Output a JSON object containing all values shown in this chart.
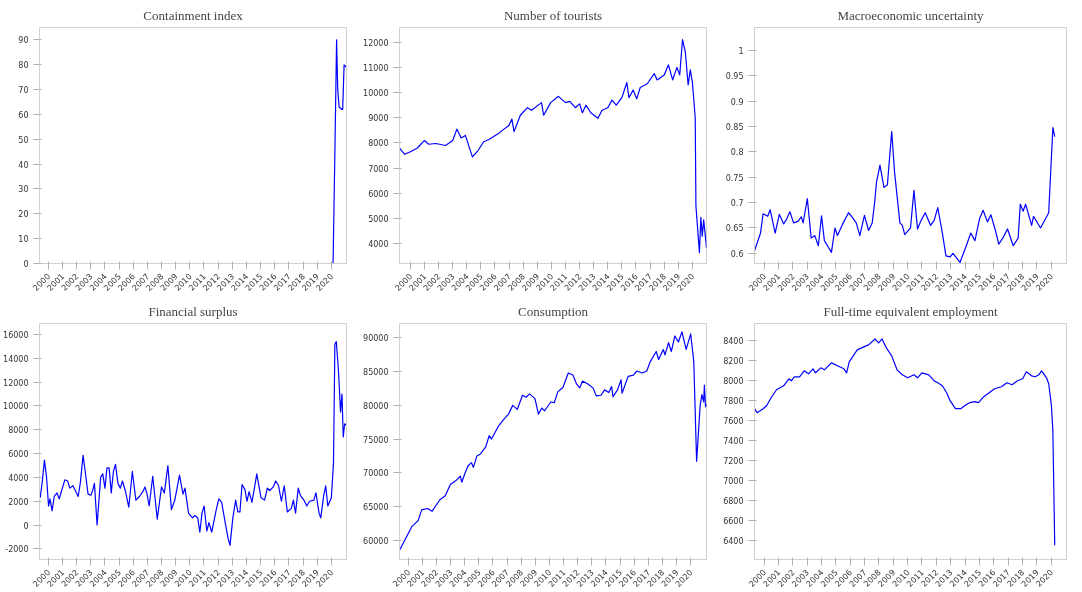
{
  "chart_data": [
    {
      "type": "line",
      "title": "Containment index",
      "xlim": [
        1999.38,
        2021.07
      ],
      "ylim": [
        0,
        95
      ],
      "xticks": [
        2000,
        2001,
        2002,
        2003,
        2004,
        2005,
        2006,
        2007,
        2008,
        2009,
        2010,
        2011,
        2012,
        2013,
        2014,
        2015,
        2016,
        2017,
        2018,
        2019,
        2020
      ],
      "yticks": [
        0,
        10,
        20,
        30,
        40,
        50,
        60,
        70,
        80,
        90
      ],
      "x": [
        1999.38,
        2020.12,
        2020.25,
        2020.37,
        2020.45,
        2020.55,
        2020.75,
        2020.8,
        2020.9,
        2021.04
      ],
      "series": [
        {
          "color": "#0000ff",
          "values": [
            0,
            0,
            45,
            90,
            70,
            63,
            62,
            62,
            80,
            79
          ]
        }
      ]
    },
    {
      "type": "line",
      "title": "Number of tourists",
      "xlim": [
        1999.23,
        2021.0
      ],
      "ylim": [
        3220,
        12580
      ],
      "xticks": [
        2000,
        2001,
        2002,
        2003,
        2004,
        2005,
        2006,
        2007,
        2008,
        2009,
        2010,
        2011,
        2012,
        2013,
        2014,
        2015,
        2016,
        2017,
        2018,
        2019,
        2020
      ],
      "yticks": [
        4000,
        5000,
        6000,
        7000,
        8000,
        9000,
        10000,
        11000,
        12000
      ],
      "x": [
        1999.23,
        1999.6,
        2000.0,
        2000.5,
        2001.0,
        2001.3,
        2001.8,
        2002.5,
        2003.0,
        2003.3,
        2003.6,
        2003.9,
        2004.4,
        2004.8,
        2005.2,
        2005.6,
        2006.3,
        2007.0,
        2007.2,
        2007.35,
        2007.8,
        2008.3,
        2008.6,
        2009.3,
        2009.45,
        2009.95,
        2010.5,
        2011.0,
        2011.3,
        2011.7,
        2012.0,
        2012.2,
        2012.45,
        2012.8,
        2013.3,
        2013.6,
        2014.0,
        2014.3,
        2014.6,
        2015.0,
        2015.35,
        2015.5,
        2015.8,
        2016.05,
        2016.3,
        2016.8,
        2017.3,
        2017.5,
        2018.0,
        2018.3,
        2018.6,
        2018.9,
        2019.1,
        2019.3,
        2019.5,
        2019.7,
        2019.85,
        2020.0,
        2020.2,
        2020.25,
        2020.5,
        2020.6,
        2020.7,
        2020.8,
        2021.0
      ],
      "series": [
        {
          "color": "#0000ff",
          "values": [
            7800,
            7550,
            7650,
            7800,
            8100,
            7950,
            7980,
            7900,
            8100,
            8550,
            8200,
            8300,
            7450,
            7700,
            8050,
            8150,
            8400,
            8700,
            8950,
            8450,
            9100,
            9400,
            9300,
            9600,
            9100,
            9600,
            9850,
            9600,
            9650,
            9400,
            9550,
            9200,
            9500,
            9200,
            8980,
            9300,
            9400,
            9700,
            9500,
            9800,
            10400,
            9800,
            10100,
            9750,
            10200,
            10350,
            10750,
            10500,
            10700,
            11100,
            10500,
            11000,
            10700,
            12100,
            11600,
            10300,
            10900,
            10400,
            9000,
            5500,
            3650,
            5050,
            4300,
            4950,
            3850
          ]
        }
      ]
    },
    {
      "type": "line",
      "title": "Macroeconomic uncertainty",
      "xlim": [
        1999.33,
        2021.07
      ],
      "ylim": [
        0.58,
        1.045
      ],
      "xticks": [
        2000,
        2001,
        2002,
        2003,
        2004,
        2005,
        2006,
        2007,
        2008,
        2009,
        2010,
        2011,
        2012,
        2013,
        2014,
        2015,
        2016,
        2017,
        2018,
        2019,
        2020
      ],
      "yticks": [
        0.6,
        0.65,
        0.7,
        0.75,
        0.8,
        0.85,
        0.9,
        0.95,
        1
      ],
      "x": [
        1999.33,
        1999.75,
        1999.93,
        2000.25,
        2000.42,
        2000.77,
        2001.06,
        2001.36,
        2001.56,
        2001.8,
        2002.05,
        2002.35,
        2002.59,
        2002.72,
        2003.01,
        2003.28,
        2003.53,
        2003.78,
        2004.0,
        2004.2,
        2004.52,
        2004.69,
        2004.94,
        2005.11,
        2005.51,
        2005.88,
        2006.12,
        2006.42,
        2006.67,
        2006.79,
        2006.99,
        2007.28,
        2007.53,
        2007.7,
        2007.83,
        2008.07,
        2008.35,
        2008.59,
        2008.89,
        2009.09,
        2009.46,
        2009.63,
        2009.8,
        2010.2,
        2010.44,
        2010.69,
        2010.94,
        2011.23,
        2011.6,
        2011.85,
        2012.1,
        2012.42,
        2012.67,
        2012.96,
        2013.16,
        2013.65,
        2014.15,
        2014.4,
        2014.69,
        2015.01,
        2015.26,
        2015.56,
        2015.8,
        2016.12,
        2016.35,
        2016.67,
        2016.96,
        2017.36,
        2017.7,
        2017.85,
        2018.05,
        2018.22,
        2018.64,
        2018.77,
        2019.26,
        2019.83,
        2020.12,
        2020.25
      ],
      "series": [
        {
          "color": "#0000ff",
          "values": [
            0.605,
            0.64,
            0.678,
            0.673,
            0.686,
            0.64,
            0.677,
            0.658,
            0.667,
            0.682,
            0.66,
            0.663,
            0.672,
            0.66,
            0.708,
            0.63,
            0.635,
            0.615,
            0.674,
            0.625,
            0.61,
            0.602,
            0.65,
            0.635,
            0.66,
            0.68,
            0.672,
            0.66,
            0.635,
            0.65,
            0.675,
            0.645,
            0.66,
            0.7,
            0.74,
            0.774,
            0.73,
            0.735,
            0.84,
            0.76,
            0.66,
            0.655,
            0.637,
            0.65,
            0.724,
            0.648,
            0.665,
            0.68,
            0.655,
            0.665,
            0.69,
            0.64,
            0.595,
            0.593,
            0.6,
            0.582,
            0.62,
            0.64,
            0.625,
            0.668,
            0.685,
            0.662,
            0.676,
            0.645,
            0.618,
            0.632,
            0.648,
            0.615,
            0.63,
            0.697,
            0.683,
            0.697,
            0.655,
            0.673,
            0.65,
            0.68,
            0.848,
            0.83
          ]
        }
      ]
    },
    {
      "type": "line",
      "title": "Financial surplus",
      "xlim": [
        1999.38,
        2021.07
      ],
      "ylim": [
        -2890,
        16920
      ],
      "xticks": [
        2000,
        2001,
        2002,
        2003,
        2004,
        2005,
        2006,
        2007,
        2008,
        2009,
        2010,
        2011,
        2012,
        2013,
        2014,
        2015,
        2016,
        2017,
        2018,
        2019,
        2020
      ],
      "yticks": [
        -2000,
        0,
        2000,
        4000,
        6000,
        8000,
        10000,
        12000,
        14000,
        16000
      ],
      "x": [
        1999.43,
        1999.58,
        1999.73,
        1999.88,
        2000.02,
        2000.12,
        2000.27,
        2000.42,
        2000.62,
        2000.77,
        2000.92,
        2001.17,
        2001.37,
        2001.52,
        2001.74,
        2001.91,
        2002.11,
        2002.26,
        2002.46,
        2002.61,
        2002.81,
        2003.01,
        2003.16,
        2003.26,
        2003.45,
        2003.7,
        2003.85,
        2004.0,
        2004.15,
        2004.3,
        2004.45,
        2004.6,
        2004.75,
        2004.92,
        2005.09,
        2005.24,
        2005.44,
        2005.69,
        2005.94,
        2006.19,
        2006.44,
        2006.68,
        2006.83,
        2006.98,
        2007.13,
        2007.38,
        2007.7,
        2008.0,
        2008.2,
        2008.45,
        2008.7,
        2008.94,
        2009.27,
        2009.52,
        2009.66,
        2009.91,
        2010.19,
        2010.36,
        2010.56,
        2010.71,
        2010.86,
        2011.01,
        2011.2,
        2011.35,
        2011.55,
        2011.85,
        2012.05,
        2012.25,
        2012.5,
        2012.7,
        2012.84,
        2013.04,
        2013.24,
        2013.39,
        2013.54,
        2013.69,
        2013.89,
        2014.04,
        2014.19,
        2014.39,
        2014.58,
        2014.73,
        2014.91,
        2015.03,
        2015.28,
        2015.48,
        2015.65,
        2015.9,
        2016.07,
        2016.27,
        2016.47,
        2016.67,
        2016.89,
        2017.17,
        2017.32,
        2017.47,
        2017.66,
        2017.81,
        2018.06,
        2018.26,
        2018.46,
        2018.76,
        2018.91,
        2019.13,
        2019.25,
        2019.45,
        2019.6,
        2019.75,
        2020.0,
        2020.15,
        2020.25,
        2020.35,
        2020.5,
        2020.65,
        2020.75,
        2020.84,
        2020.94,
        2021.04
      ],
      "series": [
        {
          "color": "#0000ff",
          "values": [
            2300,
            3700,
            5450,
            4000,
            1600,
            2200,
            1200,
            2400,
            2700,
            2200,
            2800,
            3800,
            3700,
            3100,
            3300,
            2900,
            2400,
            3500,
            5850,
            4500,
            2600,
            2500,
            3000,
            3500,
            0,
            4000,
            4300,
            3100,
            4800,
            4800,
            2700,
            4500,
            5100,
            3500,
            3100,
            3700,
            2900,
            1500,
            4500,
            2100,
            2400,
            2800,
            3200,
            2600,
            1600,
            4100,
            500,
            3200,
            2700,
            5000,
            1300,
            2100,
            4200,
            2600,
            3100,
            1000,
            600,
            800,
            600,
            -600,
            1000,
            1600,
            -500,
            200,
            -600,
            1200,
            2200,
            1900,
            200,
            -1100,
            -1700,
            600,
            2100,
            1100,
            1100,
            3400,
            3000,
            2000,
            2800,
            1900,
            3200,
            4300,
            3100,
            2300,
            2100,
            3100,
            2900,
            3200,
            3700,
            3300,
            2000,
            3300,
            1100,
            1400,
            2100,
            1000,
            3100,
            2500,
            2100,
            1600,
            2000,
            2100,
            2700,
            1000,
            600,
            2400,
            3300,
            1600,
            2300,
            5200,
            15200,
            15400,
            13000,
            9500,
            11000,
            7400,
            8500,
            8400
          ]
        }
      ]
    },
    {
      "type": "line",
      "title": "Consumption",
      "xlim": [
        1999.38,
        2021.12
      ],
      "ylim": [
        57130,
        92150
      ],
      "xticks": [
        2000,
        2001,
        2002,
        2003,
        2004,
        2005,
        2006,
        2007,
        2008,
        2009,
        2010,
        2011,
        2012,
        2013,
        2014,
        2015,
        2016,
        2017,
        2018,
        2019,
        2020
      ],
      "yticks": [
        60000,
        65000,
        70000,
        75000,
        80000,
        85000,
        90000
      ],
      "x": [
        1999.38,
        1999.63,
        1999.88,
        2000.25,
        2000.7,
        2000.95,
        2001.37,
        2001.69,
        2002.24,
        2002.62,
        2002.99,
        2003.36,
        2003.69,
        2003.79,
        2004.03,
        2004.23,
        2004.48,
        2004.61,
        2004.86,
        2005.11,
        2005.48,
        2005.73,
        2005.9,
        2006.35,
        2006.72,
        2007.1,
        2007.4,
        2007.72,
        2008.09,
        2008.34,
        2008.59,
        2008.97,
        2009.22,
        2009.46,
        2009.66,
        2010.09,
        2010.34,
        2010.59,
        2010.96,
        2011.33,
        2011.66,
        2011.91,
        2012.15,
        2012.33,
        2012.7,
        2013.08,
        2013.32,
        2013.65,
        2013.9,
        2014.2,
        2014.4,
        2014.5,
        2014.82,
        2015.07,
        2015.14,
        2015.57,
        2015.94,
        2016.19,
        2016.56,
        2016.89,
        2017.14,
        2017.56,
        2017.73,
        2018.06,
        2018.18,
        2018.43,
        2018.63,
        2018.88,
        2019.13,
        2019.38,
        2019.68,
        2020.0,
        2020.22,
        2020.42,
        2020.67,
        2020.8,
        2020.92,
        2020.97,
        2021.05,
        2021.12
      ],
      "series": [
        {
          "color": "#0000ff",
          "values": [
            58500,
            59500,
            60500,
            62000,
            62900,
            64500,
            64700,
            64300,
            66000,
            66600,
            68300,
            68800,
            69500,
            68600,
            70000,
            71000,
            71500,
            70800,
            72500,
            72800,
            73800,
            75500,
            75000,
            76800,
            77800,
            78700,
            80000,
            79400,
            81500,
            81200,
            81700,
            81000,
            78700,
            79600,
            79200,
            80500,
            80400,
            82000,
            82700,
            84800,
            84500,
            83200,
            82600,
            83600,
            83200,
            82600,
            81400,
            81500,
            82300,
            81900,
            82800,
            81300,
            82300,
            83800,
            81800,
            84300,
            84500,
            85100,
            84800,
            85100,
            86500,
            88000,
            86800,
            88300,
            87500,
            89300,
            88000,
            90300,
            89400,
            90900,
            88300,
            90600,
            86500,
            71700,
            80000,
            81600,
            80500,
            83000,
            79800,
            80200
          ]
        }
      ]
    },
    {
      "type": "line",
      "title": "Full-time equivalent employment",
      "xlim": [
        1999.33,
        2021.07
      ],
      "ylim": [
        6206,
        8575
      ],
      "xticks": [
        2000,
        2001,
        2002,
        2003,
        2004,
        2005,
        2006,
        2007,
        2008,
        2009,
        2010,
        2011,
        2012,
        2013,
        2014,
        2015,
        2016,
        2017,
        2018,
        2019,
        2020
      ],
      "yticks": [
        6400,
        6600,
        6800,
        7000,
        7200,
        7400,
        7600,
        7800,
        8000,
        8200,
        8400
      ],
      "x": [
        1999.33,
        1999.51,
        1999.93,
        2000.17,
        2000.49,
        2000.86,
        2001.36,
        2001.73,
        2001.9,
        2002.1,
        2002.47,
        2002.79,
        2003.09,
        2003.41,
        2003.58,
        2003.95,
        2004.2,
        2004.69,
        2005.26,
        2005.56,
        2005.75,
        2005.93,
        2006.3,
        2006.49,
        2006.79,
        2007.28,
        2007.73,
        2007.98,
        2008.22,
        2008.52,
        2008.89,
        2009.26,
        2009.63,
        2010.0,
        2010.44,
        2010.69,
        2010.99,
        2011.48,
        2011.85,
        2012.1,
        2012.42,
        2012.72,
        2012.96,
        2013.33,
        2013.7,
        2014.07,
        2014.32,
        2014.69,
        2014.94,
        2015.31,
        2015.68,
        2016.05,
        2016.54,
        2016.91,
        2017.28,
        2017.65,
        2018.02,
        2018.27,
        2018.64,
        2018.89,
        2019.14,
        2019.33,
        2019.68,
        2019.83,
        2020.02,
        2020.12,
        2020.25
      ],
      "series": [
        {
          "color": "#0000ff",
          "values": [
            7720,
            7680,
            7720,
            7750,
            7830,
            7910,
            7950,
            8020,
            8000,
            8040,
            8040,
            8100,
            8070,
            8120,
            8080,
            8130,
            8110,
            8180,
            8140,
            8120,
            8080,
            8190,
            8270,
            8310,
            8330,
            8360,
            8420,
            8380,
            8420,
            8330,
            8250,
            8110,
            8060,
            8030,
            8060,
            8030,
            8080,
            8060,
            8000,
            7980,
            7950,
            7880,
            7800,
            7720,
            7720,
            7760,
            7780,
            7790,
            7780,
            7840,
            7880,
            7920,
            7940,
            7980,
            7960,
            8000,
            8020,
            8090,
            8050,
            8040,
            8060,
            8100,
            8030,
            7970,
            7750,
            7500,
            6350
          ]
        }
      ]
    }
  ]
}
